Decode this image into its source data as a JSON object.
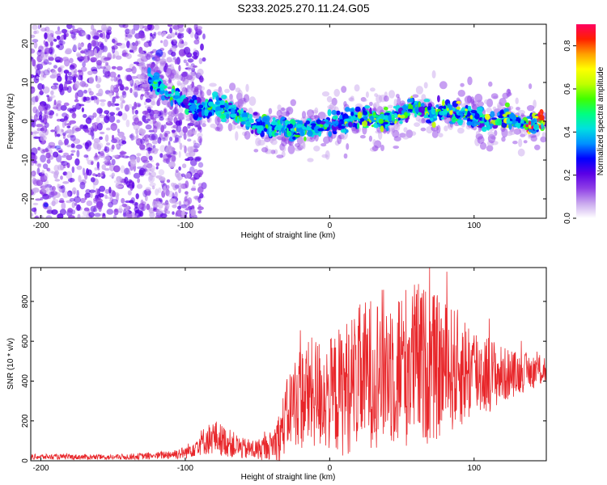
{
  "title": "S233.2025.270.11.24.G05",
  "chart_data": [
    {
      "type": "heatmap",
      "title": "S233.2025.270.11.24.G05",
      "xlabel": "Height of straight line (km)",
      "ylabel": "Frequency (Hz)",
      "xlim": [
        -207,
        150
      ],
      "ylim": [
        -25,
        25
      ],
      "xticks": [
        -200,
        -100,
        0,
        100
      ],
      "yticks": [
        -20,
        -10,
        0,
        10,
        20
      ],
      "colorbar": {
        "label": "Normalized spectral amplitude",
        "range": [
          0,
          0.9
        ],
        "ticks": [
          "0.0",
          "0.2",
          "0.4",
          "0.6",
          "0.8"
        ],
        "colors": [
          "#ffffff",
          "#c9a8ee",
          "#8f3fe6",
          "#5a00e6",
          "#0000ff",
          "#0090ff",
          "#00e0e0",
          "#00ff80",
          "#40ff00",
          "#c0ff00",
          "#ffff00",
          "#ffa000",
          "#ff2000",
          "#ff0060"
        ]
      },
      "ridge": {
        "description": "dominant frequency trend",
        "x": [
          -125,
          -110,
          -100,
          -90,
          -80,
          -70,
          -60,
          -50,
          -40,
          -30,
          -20,
          -10,
          0,
          10,
          20,
          30,
          40,
          50,
          60,
          70,
          80,
          90,
          100,
          110,
          120,
          130,
          140,
          150
        ],
        "freq": [
          11,
          7,
          5,
          3,
          4,
          3,
          1,
          -1,
          -1.5,
          -2,
          -2,
          -1.5,
          -1,
          0,
          1,
          0.5,
          0,
          2,
          4,
          2,
          3,
          2,
          1,
          0,
          1,
          0,
          -1,
          0
        ]
      }
    },
    {
      "type": "line",
      "xlabel": "Height of straight line (km)",
      "ylabel": "SNR (10 * v/v)",
      "xlim": [
        -207,
        150
      ],
      "ylim": [
        0,
        970
      ],
      "xticks": [
        -200,
        -100,
        0,
        100
      ],
      "yticks": [
        0,
        200,
        400,
        600,
        800
      ],
      "color": "#e8262a",
      "envelope": {
        "x": [
          -207,
          -150,
          -120,
          -100,
          -90,
          -80,
          -70,
          -60,
          -50,
          -40,
          -35,
          -30,
          -25,
          -20,
          -10,
          0,
          10,
          20,
          30,
          40,
          50,
          60,
          70,
          80,
          90,
          100,
          110,
          120,
          130,
          140,
          150
        ],
        "mean": [
          20,
          18,
          25,
          40,
          90,
          120,
          90,
          60,
          55,
          80,
          120,
          220,
          300,
          320,
          340,
          330,
          360,
          420,
          450,
          480,
          470,
          500,
          470,
          460,
          460,
          450,
          440,
          430,
          440,
          450,
          460
        ],
        "spread": [
          15,
          15,
          20,
          35,
          70,
          100,
          80,
          60,
          60,
          80,
          150,
          200,
          250,
          300,
          320,
          320,
          380,
          400,
          430,
          450,
          460,
          460,
          430,
          380,
          330,
          280,
          220,
          160,
          120,
          100,
          90
        ]
      }
    }
  ]
}
